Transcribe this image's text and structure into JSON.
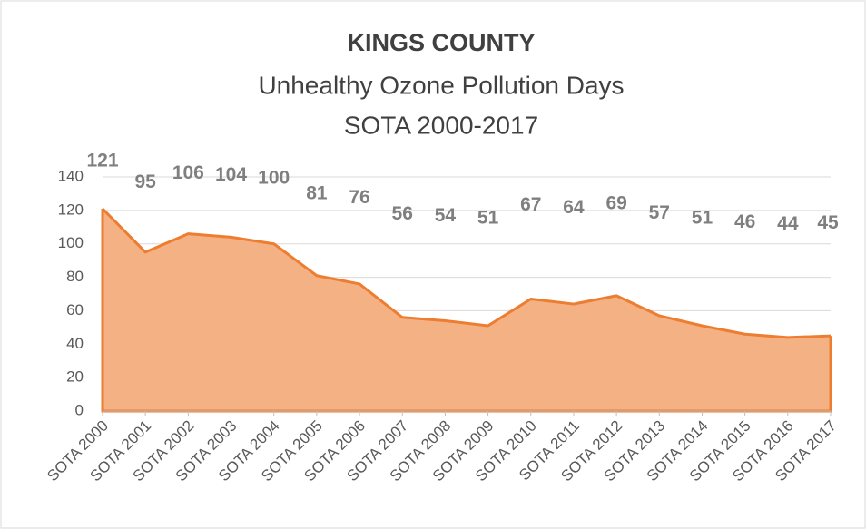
{
  "chart_data": {
    "type": "area",
    "title": "KINGS COUNTY",
    "subtitle": [
      "Unhealthy  Ozone  Pollution  Days",
      "SOTA  2000-2017"
    ],
    "categories": [
      "SOTA 2000",
      "SOTA 2001",
      "SOTA 2002",
      "SOTA 2003",
      "SOTA 2004",
      "SOTA 2005",
      "SOTA 2006",
      "SOTA 2007",
      "SOTA 2008",
      "SOTA 2009",
      "SOTA 2010",
      "SOTA 2011",
      "SOTA 2012",
      "SOTA 2013",
      "SOTA 2014",
      "SOTA 2015",
      "SOTA 2016",
      "SOTA 2017"
    ],
    "values": [
      121,
      95,
      106,
      104,
      100,
      81,
      76,
      56,
      54,
      51,
      67,
      64,
      69,
      57,
      51,
      46,
      44,
      45
    ],
    "fill": "#f4b183",
    "color": "#ed7d31",
    "ylim": [
      0,
      140
    ],
    "yticks": [
      0,
      20,
      40,
      60,
      80,
      100,
      120,
      140
    ],
    "grid": true
  }
}
